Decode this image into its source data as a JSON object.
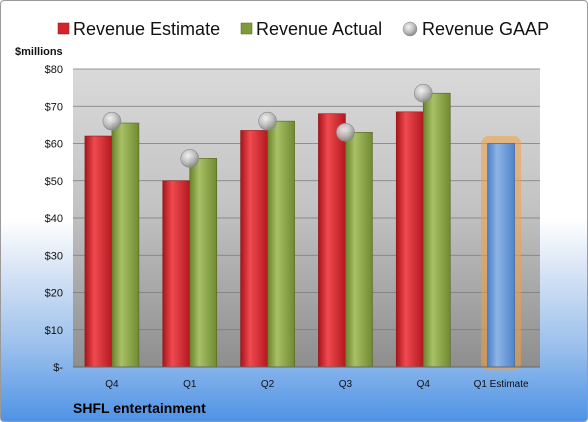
{
  "chart_data": {
    "type": "bar",
    "ylabel": "$millions",
    "ylim": [
      0,
      80
    ],
    "yticks": [
      {
        "value": 0,
        "label": "$-"
      },
      {
        "value": 10,
        "label": "$10"
      },
      {
        "value": 20,
        "label": "$20"
      },
      {
        "value": 30,
        "label": "$30"
      },
      {
        "value": 40,
        "label": "$40"
      },
      {
        "value": 50,
        "label": "$50"
      },
      {
        "value": 60,
        "label": "$60"
      },
      {
        "value": 70,
        "label": "$70"
      },
      {
        "value": 80,
        "label": "$80"
      }
    ],
    "categories": [
      "Q4",
      "Q1",
      "Q2",
      "Q3",
      "Q4",
      "Q1 Estimate"
    ],
    "series": [
      {
        "name": "Revenue Estimate",
        "kind": "bar",
        "color": "#d2242a",
        "values": [
          62,
          50,
          63.5,
          68,
          68.5,
          null
        ]
      },
      {
        "name": "Revenue Actual",
        "kind": "bar",
        "color": "#7f9a3a",
        "values": [
          65.5,
          56,
          66,
          63,
          73.5,
          null
        ]
      },
      {
        "name": "Revenue GAAP",
        "kind": "marker",
        "color": "#a8a8a8",
        "values": [
          66,
          56,
          66,
          63,
          73.5,
          null
        ]
      },
      {
        "kind": "bar",
        "color": "#5b8fd1",
        "highlight": "#f3a140",
        "values": [
          null,
          null,
          null,
          null,
          null,
          60
        ]
      }
    ],
    "grid": true,
    "legend_position": "top"
  },
  "brand": "SHFL entertainment"
}
